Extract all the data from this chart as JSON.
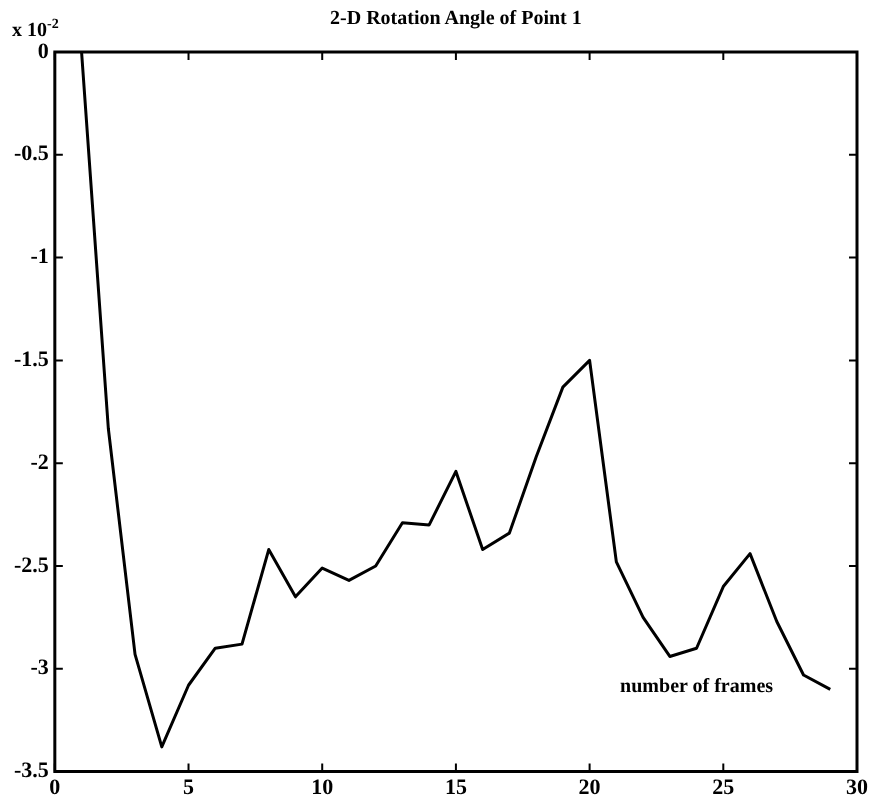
{
  "chart_data": {
    "type": "line",
    "title": "2-D Rotation Angle of Point 1",
    "xlabel": "number of frames",
    "annotations": [
      "x 10$^{-2}$"
    ],
    "x": [
      1,
      2,
      3,
      4,
      5,
      6,
      7,
      8,
      9,
      10,
      11,
      12,
      13,
      14,
      15,
      16,
      17,
      18,
      19,
      20,
      21,
      22,
      23,
      24,
      25,
      26,
      27,
      28,
      29
    ],
    "series": [
      {
        "color": "#000000",
        "values": [
          0,
          -1.83,
          -2.93,
          -3.38,
          -3.08,
          -2.9,
          -2.88,
          -2.42,
          -2.65,
          -2.51,
          -2.57,
          -2.5,
          -2.29,
          -2.3,
          -2.04,
          -2.42,
          -2.34,
          -1.97,
          -1.63,
          -1.5,
          -2.48,
          -2.75,
          -2.94,
          -2.9,
          -2.6,
          -2.44,
          -2.77,
          -3.03,
          -3.1
        ]
      }
    ],
    "xlim": [
      0,
      30
    ],
    "xticks": [
      0,
      5,
      10,
      15,
      20,
      25,
      30
    ],
    "ylim": [
      -3.5,
      0
    ],
    "yticks": [
      -3.5,
      -3,
      -2.5,
      -2,
      -1.5,
      -1,
      -0.5,
      0
    ],
    "grid": false,
    "legend": false,
    "marker": "none",
    "line_style": "solid"
  }
}
